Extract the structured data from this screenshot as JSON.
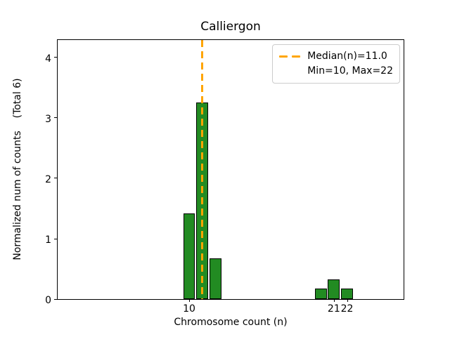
{
  "chart_data": {
    "type": "bar",
    "title": "Calliergon",
    "xlabel": "Chromosome count (n)",
    "ylabel": "Normalized num of counts    (Total 6)",
    "categories": [
      10,
      11,
      12,
      20,
      21,
      22
    ],
    "values": [
      1.42,
      3.25,
      0.67,
      0.17,
      0.33,
      0.17
    ],
    "total_counts": 6,
    "bar_color": "#228B22",
    "bar_edge_color": "#000000",
    "bar_width_units": 0.9,
    "xlim": [
      0,
      26.3
    ],
    "ylim": [
      0,
      4.29
    ],
    "x_ticks": [
      10,
      21,
      22
    ],
    "y_ticks": [
      0,
      1,
      2,
      3,
      4
    ],
    "grid": false,
    "median_line": {
      "x": 11.0,
      "color": "#FFA500",
      "style": "dashed",
      "orientation": "vertical"
    },
    "legend": {
      "position": "upper right",
      "lines": [
        "Median(n)=11.0",
        "Min=10, Max=22"
      ]
    }
  }
}
